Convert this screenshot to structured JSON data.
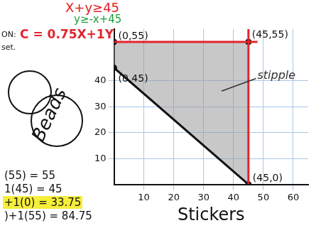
{
  "chart_data": {
    "type": "scatter",
    "x_label": "Stickers",
    "xlim": [
      0,
      65
    ],
    "xticks": [
      10,
      20,
      30,
      40,
      50,
      60
    ],
    "ylim": [
      0,
      60
    ],
    "yticks": [
      10,
      20,
      30,
      40
    ],
    "grid": true,
    "region": {
      "color": "#9b9b9b",
      "x": [
        0,
        0,
        45,
        45
      ],
      "values": [
        45,
        55,
        55,
        0
      ]
    },
    "region_label": "stipple",
    "series": [
      {
        "type": "line",
        "color": "#e3242b",
        "x": [
          0,
          48
        ],
        "values": [
          55,
          55
        ]
      },
      {
        "type": "line",
        "color": "#e3242b",
        "x": [
          45,
          45
        ],
        "values": [
          0,
          60
        ]
      },
      {
        "type": "line",
        "color": "#111111",
        "x": [
          0,
          45
        ],
        "values": [
          45,
          0
        ]
      },
      {
        "type": "scatter",
        "color": "#111111",
        "marker": "circle",
        "x": [
          0,
          0,
          45,
          45
        ],
        "values": [
          45,
          55,
          55,
          0
        ],
        "point_labels": [
          "(0,45)",
          "(0,55)",
          "(45,55)",
          "(45,0)"
        ]
      }
    ],
    "notes": {
      "equations": [
        {
          "text": "X+y≥45",
          "color": "#e3242b"
        },
        {
          "text": "y≥-x+45",
          "color": "#1e9e3a"
        }
      ],
      "objective": {
        "text": "C = 0.75X+1Y",
        "color": "#e3242b"
      },
      "margin_notes": [
        "ON:",
        "set."
      ],
      "circled": "Beads",
      "calculations": [
        {
          "text": "(55) = 55"
        },
        {
          "text": "1(45) = 45"
        },
        {
          "text": "+1(0) = 33.75",
          "color": "#f5ee3a"
        },
        {
          "text": ")+1(55) = 84.75"
        }
      ]
    }
  }
}
